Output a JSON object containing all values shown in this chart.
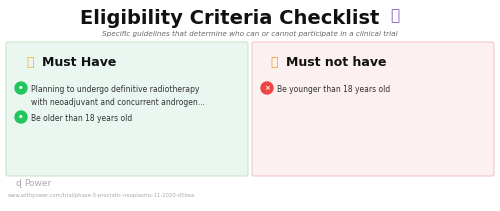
{
  "bg_color": "#ffffff",
  "title": "Eligibility Criteria Checklist",
  "subtitle": "Specific guidelines that determine who can or cannot participate in a clinical trial",
  "left_box_color": "#eaf7f1",
  "right_box_color": "#fdf0f0",
  "left_box_edge": "#c8e6c9",
  "right_box_edge": "#f5c6c6",
  "left_header": "Must Have",
  "right_header": "Must not have",
  "left_thumb_color": "#f0b429",
  "right_thumb_color": "#e8a020",
  "left_items": [
    "Planning to undergo definitive radiotherapy\nwith neoadjuvant and concurrent androgen...",
    "Be older than 18 years old"
  ],
  "left_item_icon_colors": [
    "#22c55e",
    "#22c55e"
  ],
  "right_items": [
    "Be younger than 18 years old"
  ],
  "right_item_icon_colors": [
    "#ef4444"
  ],
  "footer_text": "Power",
  "footer_url": "www.withpower.com/trial/phase-5-prostatic-neoplasms-11-2020-d5bea",
  "title_color": "#111111",
  "subtitle_color": "#666666",
  "header_color": "#111111",
  "item_color": "#333333",
  "footer_color": "#aaaaaa",
  "emoji_clipboard": "📋",
  "emoji_thumbup": "👍",
  "emoji_thumbdown": "👎"
}
